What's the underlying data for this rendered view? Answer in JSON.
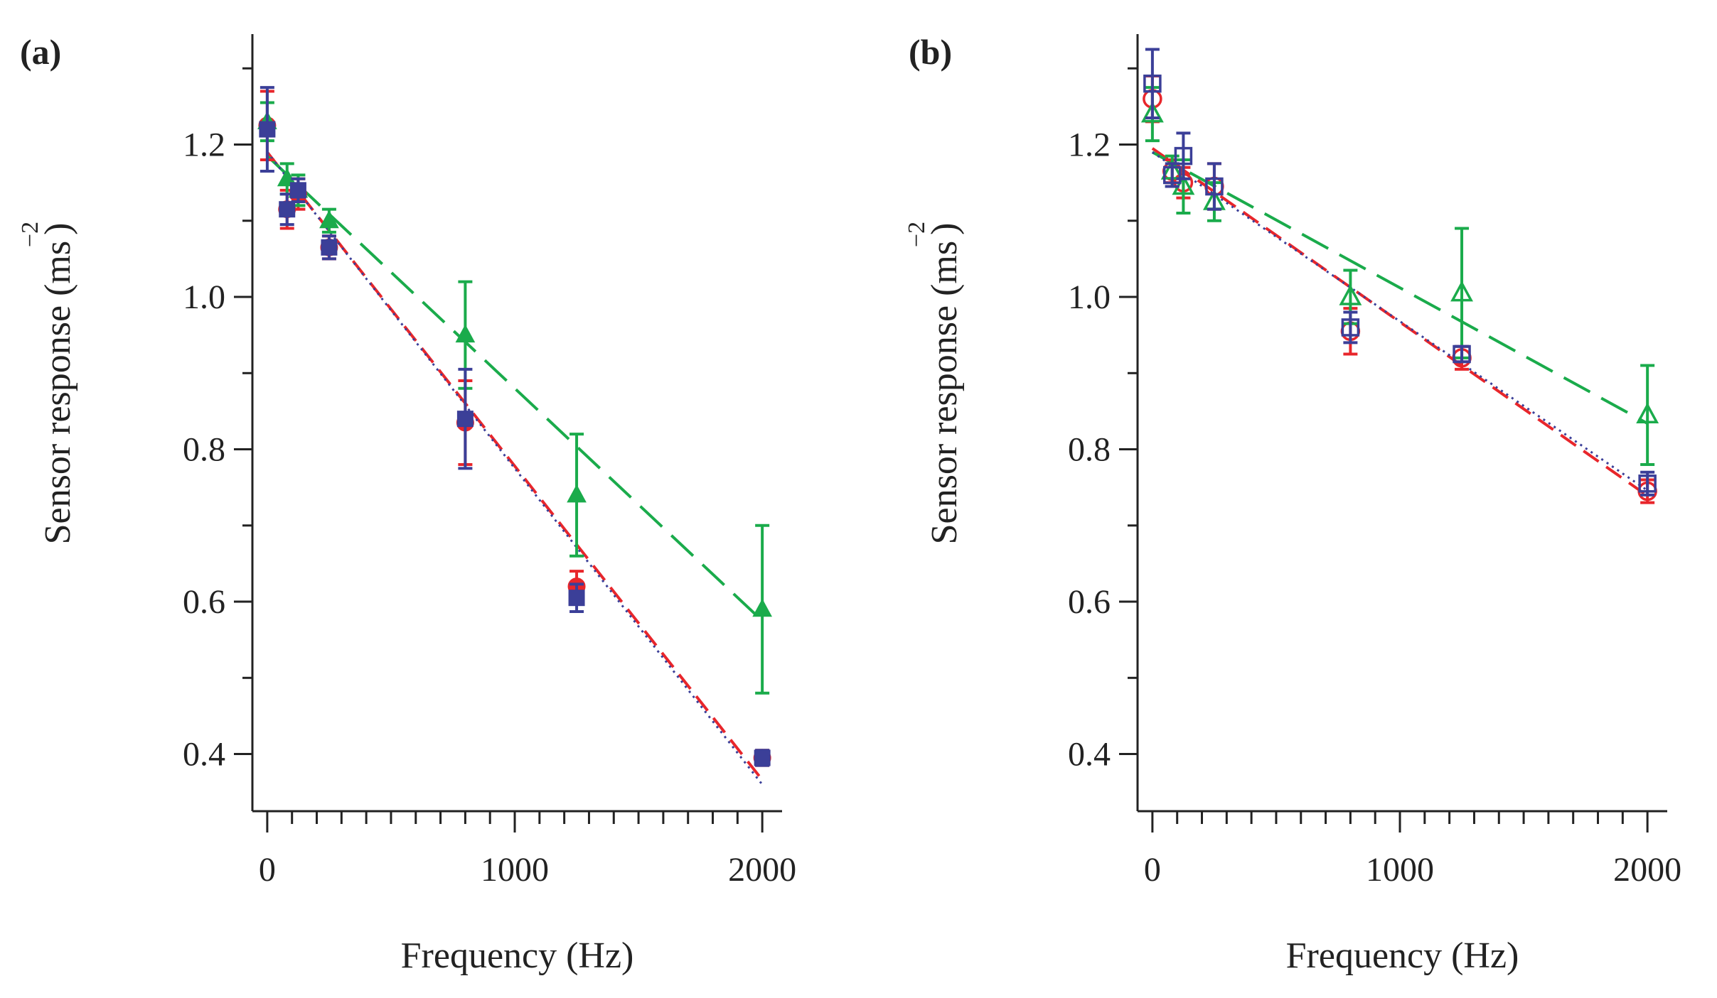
{
  "chart_data": [
    {
      "type": "scatter",
      "panel_label": "(a)",
      "xlabel": "Frequency (Hz)",
      "ylabel": "Sensor response (ms",
      "ylabel_exponent": "−2",
      "ylabel_close": ")",
      "xlim": [
        -60,
        2080
      ],
      "ylim": [
        0.325,
        1.345
      ],
      "xticks": [
        0,
        1000,
        2000
      ],
      "xtick_labels": [
        "0",
        "1000",
        "2000"
      ],
      "x_minor_step": 100,
      "yticks": [
        0.4,
        0.6,
        0.8,
        1.0,
        1.2
      ],
      "ytick_labels": [
        "0.4",
        "0.6",
        "0.8",
        "1.0",
        "1.2"
      ],
      "series": [
        {
          "name": "red",
          "color": "#e8262b",
          "marker": "circle",
          "filled": true,
          "line_style": "dashed",
          "x": [
            0,
            80,
            125,
            250,
            800,
            1250,
            2000
          ],
          "y": [
            1.225,
            1.115,
            1.135,
            1.065,
            0.835,
            0.62,
            0.395
          ],
          "err": [
            0.045,
            0.025,
            0.02,
            0.015,
            0.055,
            0.02,
            0.01
          ],
          "fit": [
            1.19,
            -0.000412
          ]
        },
        {
          "name": "green",
          "color": "#1aab4b",
          "marker": "triangle",
          "filled": true,
          "line_style": "long-dashed",
          "x": [
            0,
            80,
            125,
            250,
            800,
            1250,
            2000
          ],
          "y": [
            1.23,
            1.155,
            1.14,
            1.1,
            0.95,
            0.74,
            0.59
          ],
          "err": [
            0.025,
            0.02,
            0.02,
            0.015,
            0.07,
            0.08,
            0.11
          ],
          "fit": [
            1.185,
            -0.000305
          ]
        },
        {
          "name": "blue",
          "color": "#3b3f98",
          "marker": "square",
          "filled": true,
          "line_style": "dotted",
          "x": [
            0,
            80,
            125,
            250,
            800,
            1250,
            2000
          ],
          "y": [
            1.22,
            1.115,
            1.14,
            1.065,
            0.84,
            0.605,
            0.395
          ],
          "err": [
            0.055,
            0.02,
            0.015,
            0.015,
            0.065,
            0.018,
            0.01
          ],
          "fit": [
            1.19,
            -0.000415
          ]
        }
      ]
    },
    {
      "type": "scatter",
      "panel_label": "(b)",
      "xlabel": "Frequency (Hz)",
      "ylabel": "Sensor response (ms",
      "ylabel_exponent": "−2",
      "ylabel_close": ")",
      "xlim": [
        -60,
        2080
      ],
      "ylim": [
        0.325,
        1.345
      ],
      "xticks": [
        0,
        1000,
        2000
      ],
      "xtick_labels": [
        "0",
        "1000",
        "2000"
      ],
      "x_minor_step": 100,
      "yticks": [
        0.4,
        0.6,
        0.8,
        1.0,
        1.2
      ],
      "ytick_labels": [
        "0.4",
        "0.6",
        "0.8",
        "1.0",
        "1.2"
      ],
      "series": [
        {
          "name": "red",
          "color": "#e8262b",
          "marker": "circle",
          "filled": false,
          "line_style": "dashed",
          "x": [
            0,
            80,
            125,
            250,
            800,
            1250,
            2000
          ],
          "y": [
            1.26,
            1.165,
            1.15,
            1.145,
            0.955,
            0.92,
            0.745
          ],
          "err": [
            0.03,
            0.015,
            0.02,
            0.03,
            0.03,
            0.015,
            0.015
          ],
          "fit": [
            1.195,
            -0.000228
          ]
        },
        {
          "name": "green",
          "color": "#1aab4b",
          "marker": "triangle",
          "filled": false,
          "line_style": "long-dashed",
          "x": [
            0,
            80,
            125,
            250,
            800,
            1250,
            2000
          ],
          "y": [
            1.24,
            1.165,
            1.145,
            1.125,
            1.0,
            1.005,
            0.845
          ],
          "err": [
            0.035,
            0.02,
            0.035,
            0.025,
            0.035,
            0.085,
            0.065
          ],
          "fit": [
            1.19,
            -0.000178
          ]
        },
        {
          "name": "blue",
          "color": "#3b3f98",
          "marker": "square",
          "filled": false,
          "line_style": "dotted",
          "x": [
            0,
            80,
            125,
            250,
            800,
            1250,
            2000
          ],
          "y": [
            1.28,
            1.16,
            1.185,
            1.145,
            0.96,
            0.925,
            0.755
          ],
          "err": [
            0.045,
            0.015,
            0.03,
            0.03,
            0.02,
            0.01,
            0.015
          ],
          "fit": [
            1.19,
            -0.000222
          ]
        }
      ]
    }
  ]
}
